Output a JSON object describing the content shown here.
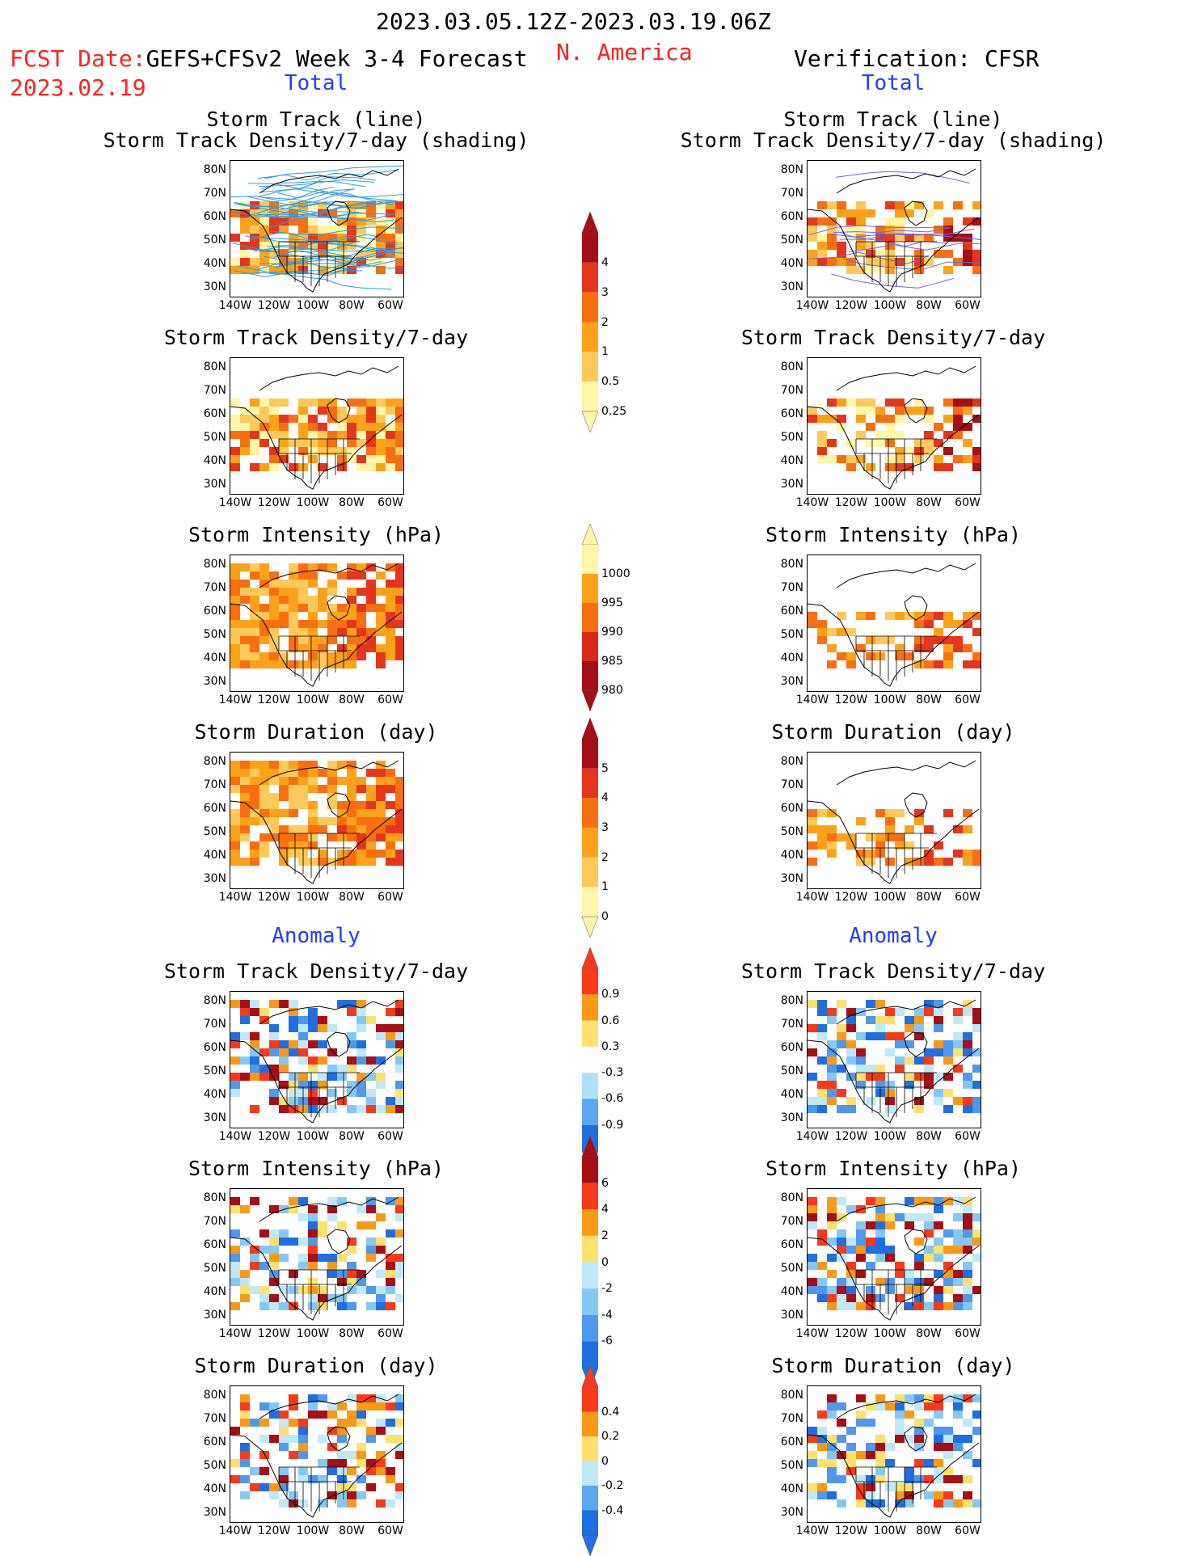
{
  "header": {
    "date_range": "2023.03.05.12Z-2023.03.19.06Z",
    "fcst_label": "FCST Date:",
    "fcst_system": "GEFS+CFSv2 Week 3-4 Forecast",
    "fcst_date": "2023.02.19",
    "region": "N. America",
    "verification": "Verification: CFSR",
    "total_left": "Total",
    "total_right": "Total",
    "anomaly_left": "Anomaly",
    "anomaly_right": "Anomaly"
  },
  "axes": {
    "lat_labels": [
      "80N",
      "70N",
      "60N",
      "50N",
      "40N",
      "30N"
    ],
    "lon_labels": [
      "140W",
      "120W",
      "100W",
      "80W",
      "60W"
    ]
  },
  "panels": {
    "storm_track_line": "Storm Track (line)",
    "storm_track_shading": "Storm Track Density/7-day (shading)",
    "track_density": "Storm Track Density/7-day",
    "intensity": "Storm Intensity (hPa)",
    "duration": "Storm Duration (day)"
  },
  "colorbars": {
    "density": {
      "ticks": [
        "4",
        "3",
        "2",
        "1",
        "0.5",
        "0.25"
      ],
      "colors": [
        "#a50f15",
        "#e4361c",
        "#f86f12",
        "#fba21a",
        "#fdc95a",
        "#fef6a8"
      ]
    },
    "intensity": {
      "ticks": [
        "1000",
        "995",
        "990",
        "985",
        "980"
      ],
      "colors": [
        "#fef6a8",
        "#fba21a",
        "#f86f12",
        "#d8291b",
        "#a50f15"
      ]
    },
    "duration": {
      "ticks": [
        "5",
        "4",
        "3",
        "2",
        "1",
        "0"
      ],
      "colors": [
        "#a50f15",
        "#e4361c",
        "#f86f12",
        "#fba21a",
        "#fdc95a",
        "#fef6a8"
      ]
    },
    "density_anom": {
      "ticks": [
        "0.9",
        "0.6",
        "0.3",
        "-0.3",
        "-0.6",
        "-0.9"
      ],
      "colors": [
        "#f63a1a",
        "#f99a16",
        "#fde16e",
        "#ffffff",
        "#aee3f7",
        "#5aa9ee",
        "#1f6fe0"
      ]
    },
    "intensity_anom": {
      "ticks": [
        "6",
        "4",
        "2",
        "0",
        "-2",
        "-4",
        "-6"
      ],
      "colors": [
        "#a50f15",
        "#f63a1a",
        "#f99a16",
        "#fde16e",
        "#bfe8f9",
        "#86c8f4",
        "#4f98ec",
        "#1f6fe0"
      ]
    },
    "duration_anom": {
      "ticks": [
        "0.4",
        "0.2",
        "0",
        "-0.2",
        "-0.4"
      ],
      "colors": [
        "#f63a1a",
        "#f99a16",
        "#fde16e",
        "#bfe8f9",
        "#5aa9ee",
        "#1f6fe0"
      ]
    }
  }
}
